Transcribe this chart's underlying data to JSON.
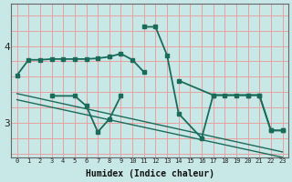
{
  "xlabel": "Humidex (Indice chaleur)",
  "bg_color": "#c8e8e8",
  "grid_color_v": "#e8a0a0",
  "grid_color_h": "#e8a0a0",
  "line_color": "#1a6b5a",
  "yticks": [
    3,
    4
  ],
  "ylim": [
    2.55,
    4.55
  ],
  "xlim": [
    -0.5,
    23.5
  ],
  "line1_x": [
    0,
    1,
    2,
    3,
    4,
    5,
    6,
    7,
    8,
    9,
    10,
    11
  ],
  "line1_y": [
    3.62,
    3.82,
    3.82,
    3.83,
    3.83,
    3.83,
    3.83,
    3.84,
    3.86,
    3.9,
    3.82,
    3.66
  ],
  "line1b_x": [
    14,
    17,
    18,
    20,
    21,
    22,
    23
  ],
  "line1b_y": [
    3.55,
    3.36,
    3.36,
    3.36,
    3.36,
    2.9,
    2.9
  ],
  "line2_x": [
    3,
    5,
    6,
    7,
    8,
    9
  ],
  "line2_y": [
    3.35,
    3.35,
    3.22,
    2.88,
    3.05,
    3.35
  ],
  "line3_x": [
    11,
    12,
    13,
    14,
    16,
    17,
    19,
    20,
    21,
    22,
    23
  ],
  "line3_y": [
    4.25,
    4.25,
    3.88,
    3.12,
    2.8,
    3.36,
    3.36,
    3.36,
    3.36,
    2.9,
    2.9
  ],
  "trend1_x": [
    0,
    23
  ],
  "trend1_y": [
    3.38,
    2.62
  ],
  "trend2_x": [
    0,
    23
  ],
  "trend2_y": [
    3.3,
    2.55
  ]
}
